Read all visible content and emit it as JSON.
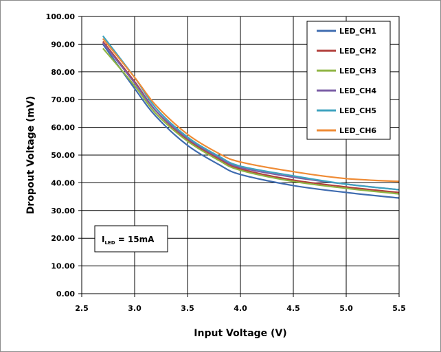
{
  "chart_data": {
    "type": "line",
    "title": "",
    "xlabel": "Input Voltage (V)",
    "ylabel": "Dropout Voltage (mV)",
    "xlim": [
      2.5,
      5.5
    ],
    "ylim": [
      0,
      100
    ],
    "x_ticks": [
      "2.5",
      "3.0",
      "3.5",
      "4.0",
      "4.5",
      "5.0",
      "5.5"
    ],
    "y_ticks": [
      "0.00",
      "10.00",
      "20.00",
      "30.00",
      "40.00",
      "50.00",
      "60.00",
      "70.00",
      "80.00",
      "90.00",
      "100.00"
    ],
    "grid": true,
    "legend_position": "top-right",
    "annotation": {
      "main": "I",
      "sub": "LED",
      "rest": " = 15mA"
    },
    "x": [
      2.7,
      3.0,
      3.2,
      3.5,
      3.8,
      4.0,
      4.5,
      5.0,
      5.5
    ],
    "series": [
      {
        "name": "LED_CH1",
        "color": "#3f6cb0",
        "values": [
          90.0,
          74.0,
          64.0,
          53.5,
          46.5,
          43.0,
          39.0,
          36.5,
          34.5
        ]
      },
      {
        "name": "LED_CH2",
        "color": "#b2403c",
        "values": [
          91.0,
          76.5,
          66.0,
          55.5,
          48.5,
          45.0,
          41.0,
          38.5,
          36.5
        ]
      },
      {
        "name": "LED_CH3",
        "color": "#8fb444",
        "values": [
          88.5,
          75.0,
          65.0,
          55.0,
          48.0,
          44.5,
          40.5,
          38.0,
          36.0
        ]
      },
      {
        "name": "LED_CH4",
        "color": "#7b5fa6",
        "values": [
          90.5,
          76.0,
          66.0,
          56.0,
          49.0,
          45.5,
          42.0,
          39.5,
          37.5
        ]
      },
      {
        "name": "LED_CH5",
        "color": "#3fa3bf",
        "values": [
          93.0,
          78.0,
          67.0,
          56.5,
          49.5,
          46.0,
          42.5,
          39.5,
          37.5
        ]
      },
      {
        "name": "LED_CH6",
        "color": "#ef8b35",
        "values": [
          92.0,
          78.0,
          68.0,
          57.5,
          50.5,
          47.5,
          44.0,
          41.5,
          40.5
        ]
      }
    ]
  }
}
